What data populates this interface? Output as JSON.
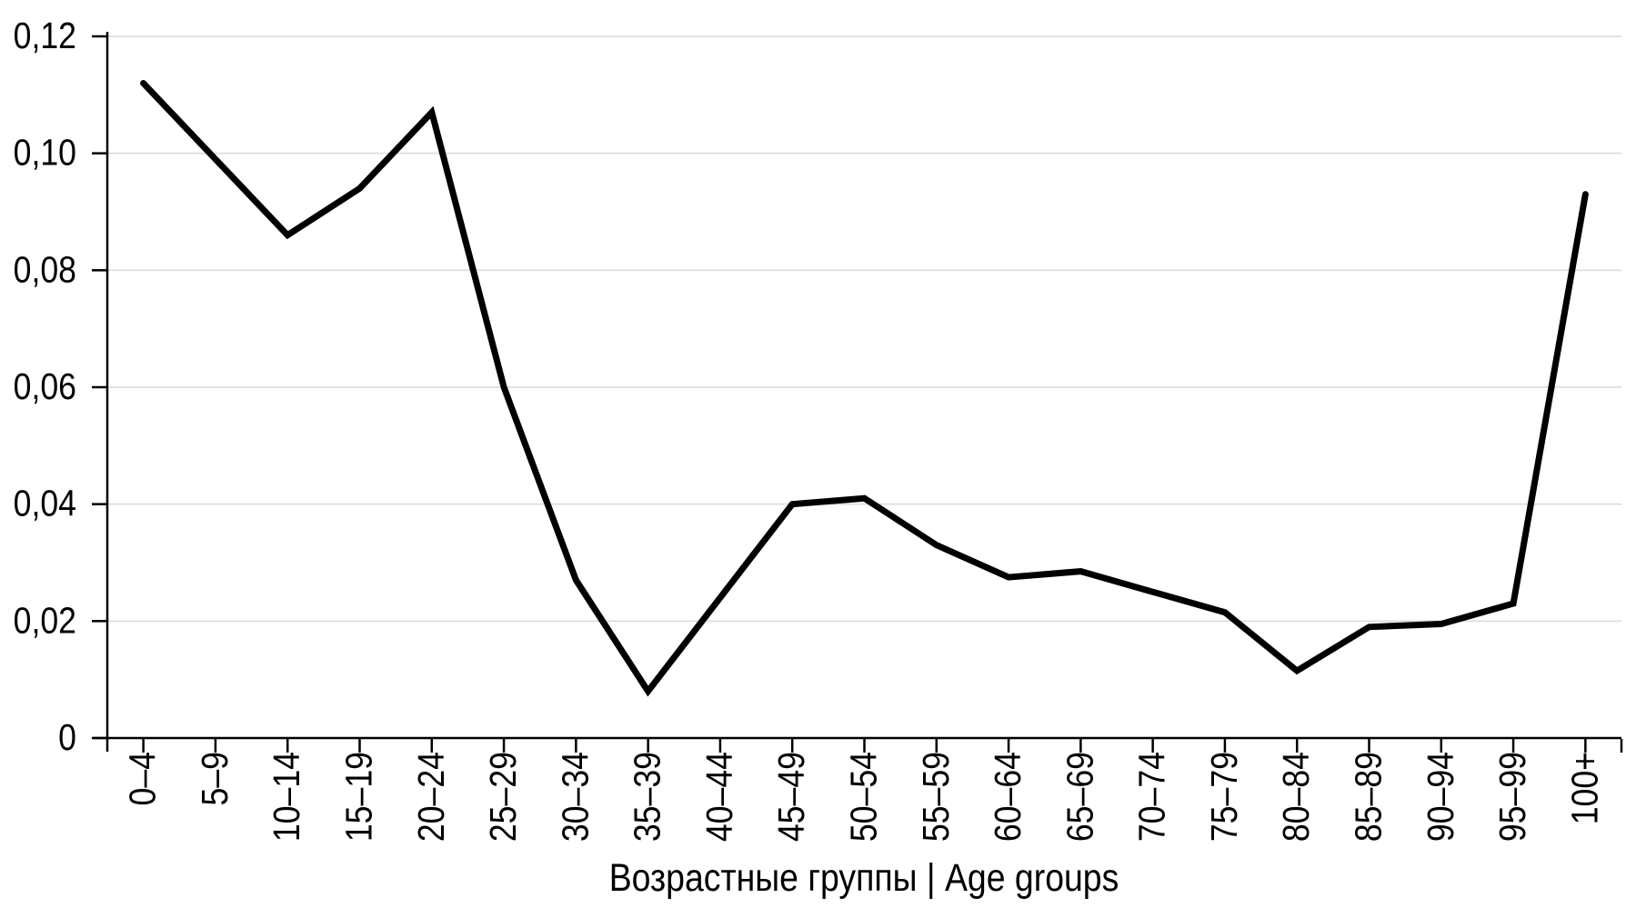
{
  "page": {
    "background": "#ffffff"
  },
  "chart_data": {
    "type": "line",
    "title": "",
    "xlabel": "Возрастные группы | Age groups",
    "ylabel": "",
    "categories": [
      "0–4",
      "5–9",
      "10–14",
      "15–19",
      "20–24",
      "25–29",
      "30–34",
      "35–39",
      "40–44",
      "45–49",
      "50–54",
      "55–59",
      "60–64",
      "65–69",
      "70–74",
      "75–79",
      "80–84",
      "85–89",
      "90–94",
      "95–99",
      "100+"
    ],
    "values": [
      0.112,
      0.099,
      0.086,
      0.094,
      0.107,
      0.06,
      0.027,
      0.008,
      0.024,
      0.04,
      0.041,
      0.033,
      0.0275,
      0.0285,
      0.025,
      0.0215,
      0.0115,
      0.019,
      0.0195,
      0.023,
      0.093
    ],
    "ylim": [
      0,
      0.12
    ],
    "ytick_values": [
      0,
      0.02,
      0.04,
      0.06,
      0.08,
      0.1,
      0.12
    ],
    "ytick_labels": [
      "0",
      "0,02",
      "0,04",
      "0,06",
      "0,08",
      "0,10",
      "0,12"
    ],
    "decimal_separator": ",",
    "grid": "horizontal",
    "legend": "none",
    "line_color": "#000000",
    "gridline_color": "#d9d9d9",
    "axis_color": "#000000",
    "text_color": "#000000",
    "background": "#ffffff"
  }
}
